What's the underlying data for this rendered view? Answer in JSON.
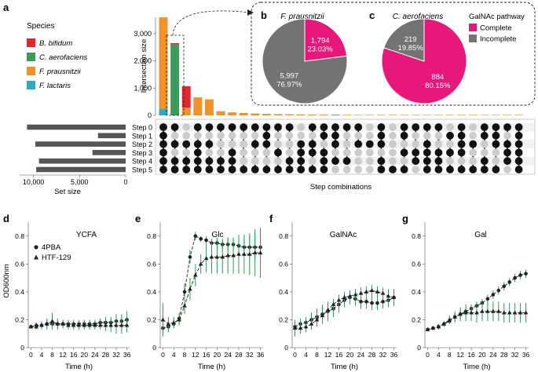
{
  "panel_labels": {
    "a": "a",
    "b": "b",
    "c": "c",
    "d": "d",
    "e": "e",
    "f": "f",
    "g": "g"
  },
  "legend_species": {
    "title": "Species",
    "items": [
      {
        "label": "B. bifidum",
        "color": "#e0262f"
      },
      {
        "label": "C. aerofaciens",
        "color": "#3c9a5a"
      },
      {
        "label": "F. prausnitzii",
        "color": "#f0922a"
      },
      {
        "label": "F. lactaris",
        "color": "#32a9c0"
      }
    ]
  },
  "legend_pathway": {
    "title": "GalNAc pathway",
    "items": [
      {
        "label": "Complete",
        "color": "#e8187a"
      },
      {
        "label": "Incomplete",
        "color": "#737373"
      }
    ]
  },
  "colors": {
    "dark_bar": "#555555",
    "dot_on": "#111111",
    "dot_off": "#cccccc",
    "error": "#2e9a5a"
  },
  "chart_data": [
    {
      "type": "bar",
      "name": "intersection-size",
      "ylabel": "Intersection size",
      "xlabel": "Step combinations",
      "ylim": [
        0,
        3600
      ],
      "yticks": [
        0,
        1000,
        2000,
        3000
      ],
      "ytick_labels": [
        "0",
        "1,000",
        "2,000",
        "3,000"
      ],
      "stacked": [
        {
          "F. lactaris": 250,
          "F. prausnitzii": 3350
        },
        {
          "C. aerofaciens": 2600,
          "B. bifidum": 50
        },
        {
          "B. bifidum": 790,
          "F. prausnitzii": 280
        },
        {
          "F. prausnitzii": 660
        },
        {
          "F. prausnitzii": 590
        },
        {
          "F. prausnitzii": 150
        },
        {
          "F. prausnitzii": 110
        },
        {
          "F. prausnitzii": 90
        },
        {
          "F. prausnitzii": 70
        },
        {
          "F. prausnitzii": 55
        },
        {
          "F. prausnitzii": 45
        },
        {
          "F. prausnitzii": 40
        },
        {
          "F. prausnitzii": 35
        },
        {
          "F. prausnitzii": 30
        },
        {
          "F. prausnitzii": 25
        },
        {
          "C. aerofaciens": 22
        },
        {
          "F. prausnitzii": 20
        },
        {
          "F. prausnitzii": 18
        },
        {
          "F. prausnitzii": 15
        },
        {
          "F. prausnitzii": 12
        },
        {
          "F. prausnitzii": 10
        },
        {
          "F. prausnitzii": 8
        },
        {
          "F. prausnitzii": 7
        },
        {
          "F. prausnitzii": 5
        },
        {
          "F. prausnitzii": 4
        },
        {
          "F. prausnitzii": 3
        },
        {
          "F. prausnitzii": 2
        },
        {
          "F. prausnitzii": 2
        },
        {
          "F. prausnitzii": 1
        },
        {
          "F. prausnitzii": 1
        },
        {
          "F. prausnitzii": 1
        },
        {
          "F. prausnitzii": 1
        }
      ]
    },
    {
      "type": "bar",
      "name": "set-size",
      "orientation": "horizontal",
      "xlabel": "Set size",
      "xlim": [
        0,
        11500
      ],
      "xticks": [
        0,
        5000,
        10000
      ],
      "xtick_labels": [
        "0",
        "5,000",
        "10,000"
      ],
      "sets": [
        "Step 0",
        "Step 1",
        "Step 2",
        "Step 3",
        "Step 4",
        "Step 5"
      ],
      "values": [
        10700,
        3000,
        9800,
        3600,
        9400,
        9700
      ]
    },
    {
      "type": "table",
      "name": "upset-matrix",
      "rows": [
        "Step 0",
        "Step 1",
        "Step 2",
        "Step 3",
        "Step 4",
        "Step 5"
      ],
      "combinations": [
        "111111",
        "101011",
        "001011",
        "101111",
        "101011",
        "100011",
        "100111",
        "100001",
        "101001",
        "111001",
        "100101",
        "100011",
        "001111",
        "101101",
        "110111",
        "111010",
        "100010",
        "101000",
        "001000",
        "111011",
        "000001",
        "110101",
        "100110",
        "101111",
        "100111",
        "010101",
        "111101",
        "001001",
        "110011",
        "111001",
        "101110",
        "111111"
      ]
    },
    {
      "type": "pie",
      "name": "f-prausnitzii-pie",
      "title": "F. prausnitzii",
      "slices": [
        {
          "label": "Complete",
          "value": 1794,
          "value_text": "1,794",
          "percent_text": "23.03%"
        },
        {
          "label": "Incomplete",
          "value": 5997,
          "value_text": "5,997",
          "percent_text": "76.97%"
        }
      ]
    },
    {
      "type": "pie",
      "name": "c-aerofaciens-pie",
      "title": "C. aerofaciens",
      "slices": [
        {
          "label": "Complete",
          "value": 884,
          "value_text": "884",
          "percent_text": "80.15%"
        },
        {
          "label": "Incomplete",
          "value": 219,
          "value_text": "219",
          "percent_text": "19.85%"
        }
      ]
    },
    {
      "type": "line",
      "name": "growth-ycfa",
      "title": "YCFA",
      "xlabel": "Time (h)",
      "ylabel": "OD600nm",
      "xlim": [
        -1,
        37
      ],
      "ylim": [
        0,
        0.9
      ],
      "xticks": [
        0,
        4,
        8,
        12,
        16,
        20,
        24,
        28,
        32,
        36
      ],
      "yticks": [
        0,
        0.2,
        0.4,
        0.6,
        0.8
      ],
      "ytick_labels": [
        "0",
        "0.2",
        "0.4",
        "0.6",
        "0.8"
      ],
      "legend": [
        "4PBA",
        "HTF-129"
      ],
      "series": [
        {
          "name": "4PBA",
          "marker": "circle",
          "x": [
            0,
            2,
            4,
            6,
            8,
            10,
            12,
            14,
            16,
            18,
            20,
            22,
            24,
            26,
            28,
            30,
            32,
            34,
            36
          ],
          "y": [
            0.15,
            0.16,
            0.16,
            0.17,
            0.17,
            0.17,
            0.17,
            0.17,
            0.17,
            0.17,
            0.17,
            0.17,
            0.17,
            0.18,
            0.18,
            0.18,
            0.19,
            0.19,
            0.2
          ],
          "err": [
            0.01,
            0.02,
            0.02,
            0.03,
            0.03,
            0.03,
            0.03,
            0.03,
            0.03,
            0.03,
            0.03,
            0.03,
            0.03,
            0.03,
            0.04,
            0.04,
            0.05,
            0.05,
            0.06
          ]
        },
        {
          "name": "HTF-129",
          "marker": "triangle",
          "x": [
            0,
            2,
            4,
            6,
            8,
            10,
            12,
            14,
            16,
            18,
            20,
            22,
            24,
            26,
            28,
            30,
            32,
            34,
            36
          ],
          "y": [
            0.15,
            0.15,
            0.16,
            0.17,
            0.19,
            0.17,
            0.17,
            0.16,
            0.16,
            0.16,
            0.16,
            0.16,
            0.16,
            0.16,
            0.16,
            0.16,
            0.16,
            0.16,
            0.16
          ],
          "err": [
            0.01,
            0.02,
            0.03,
            0.04,
            0.06,
            0.04,
            0.03,
            0.03,
            0.03,
            0.03,
            0.03,
            0.03,
            0.03,
            0.03,
            0.04,
            0.05,
            0.06,
            0.06,
            0.05
          ]
        }
      ]
    },
    {
      "type": "line",
      "name": "growth-glc",
      "title": "Glc",
      "xlabel": "Time (h)",
      "ylabel": "",
      "xlim": [
        -1,
        37
      ],
      "ylim": [
        0,
        0.9
      ],
      "xticks": [
        0,
        4,
        8,
        12,
        16,
        20,
        24,
        28,
        32,
        36
      ],
      "yticks": [
        0,
        0.2,
        0.4,
        0.6,
        0.8
      ],
      "ytick_labels": [
        "0",
        "0.2",
        "0.4",
        "0.6",
        "0.8"
      ],
      "series": [
        {
          "name": "4PBA",
          "marker": "circle",
          "x": [
            0,
            2,
            4,
            6,
            8,
            10,
            12,
            14,
            16,
            18,
            20,
            22,
            24,
            26,
            28,
            30,
            32,
            34,
            36
          ],
          "y": [
            0.14,
            0.15,
            0.17,
            0.21,
            0.4,
            0.65,
            0.8,
            0.78,
            0.77,
            0.75,
            0.75,
            0.74,
            0.74,
            0.74,
            0.73,
            0.72,
            0.72,
            0.72,
            0.72
          ],
          "err": [
            0.05,
            0.04,
            0.03,
            0.04,
            0.06,
            0.05,
            0.03,
            0.02,
            0.03,
            0.03,
            0.04,
            0.04,
            0.05,
            0.04,
            0.05,
            0.06,
            0.08,
            0.1,
            0.12
          ]
        },
        {
          "name": "HTF-129",
          "marker": "triangle",
          "x": [
            0,
            2,
            4,
            6,
            8,
            10,
            12,
            14,
            16,
            18,
            20,
            22,
            24,
            26,
            28,
            30,
            32,
            34,
            36
          ],
          "y": [
            0.2,
            0.17,
            0.18,
            0.2,
            0.3,
            0.42,
            0.52,
            0.6,
            0.64,
            0.65,
            0.65,
            0.65,
            0.66,
            0.66,
            0.67,
            0.67,
            0.67,
            0.68,
            0.68
          ],
          "err": [
            0.12,
            0.05,
            0.04,
            0.04,
            0.06,
            0.08,
            0.08,
            0.07,
            0.1,
            0.12,
            0.12,
            0.12,
            0.13,
            0.13,
            0.14,
            0.14,
            0.15,
            0.17,
            0.18
          ]
        }
      ]
    },
    {
      "type": "line",
      "name": "growth-galnac",
      "title": "GalNAc",
      "xlabel": "Time (h)",
      "ylabel": "",
      "xlim": [
        -1,
        37
      ],
      "ylim": [
        0,
        0.9
      ],
      "xticks": [
        0,
        4,
        8,
        12,
        16,
        20,
        24,
        28,
        32,
        36
      ],
      "yticks": [
        0,
        0.2,
        0.4,
        0.6,
        0.8
      ],
      "ytick_labels": [
        "0",
        "0.2",
        "0.4",
        "0.6",
        "0.8"
      ],
      "series": [
        {
          "name": "4PBA",
          "marker": "circle",
          "x": [
            0,
            2,
            4,
            6,
            8,
            10,
            12,
            14,
            16,
            18,
            20,
            22,
            24,
            26,
            28,
            30,
            32,
            34,
            36
          ],
          "y": [
            0.15,
            0.17,
            0.18,
            0.2,
            0.22,
            0.24,
            0.26,
            0.28,
            0.31,
            0.34,
            0.36,
            0.35,
            0.33,
            0.33,
            0.32,
            0.32,
            0.33,
            0.34,
            0.36
          ],
          "err": [
            0.03,
            0.04,
            0.04,
            0.05,
            0.06,
            0.07,
            0.07,
            0.06,
            0.06,
            0.05,
            0.05,
            0.05,
            0.05,
            0.05,
            0.05,
            0.05,
            0.05,
            0.05,
            0.06
          ]
        },
        {
          "name": "HTF-129",
          "marker": "triangle",
          "x": [
            0,
            2,
            4,
            6,
            8,
            10,
            12,
            14,
            16,
            18,
            20,
            22,
            24,
            26,
            28,
            30,
            32,
            34,
            36
          ],
          "y": [
            0.14,
            0.14,
            0.15,
            0.17,
            0.2,
            0.23,
            0.27,
            0.31,
            0.34,
            0.36,
            0.37,
            0.38,
            0.39,
            0.4,
            0.41,
            0.4,
            0.39,
            0.37,
            0.36
          ],
          "err": [
            0.06,
            0.04,
            0.04,
            0.04,
            0.05,
            0.05,
            0.05,
            0.04,
            0.04,
            0.04,
            0.04,
            0.04,
            0.04,
            0.04,
            0.04,
            0.04,
            0.04,
            0.05,
            0.05
          ]
        }
      ]
    },
    {
      "type": "line",
      "name": "growth-gal",
      "title": "Gal",
      "xlabel": "Time (h)",
      "ylabel": "",
      "xlim": [
        -1,
        37
      ],
      "ylim": [
        0,
        0.9
      ],
      "xticks": [
        0,
        4,
        8,
        12,
        16,
        20,
        24,
        28,
        32,
        36
      ],
      "yticks": [
        0,
        0.2,
        0.4,
        0.6,
        0.8
      ],
      "ytick_labels": [
        "0",
        "0.2",
        "0.4",
        "0.6",
        "0.8"
      ],
      "series": [
        {
          "name": "4PBA",
          "marker": "circle",
          "x": [
            0,
            2,
            4,
            6,
            8,
            10,
            12,
            14,
            16,
            18,
            20,
            22,
            24,
            26,
            28,
            30,
            32,
            34,
            36
          ],
          "y": [
            0.13,
            0.14,
            0.15,
            0.17,
            0.19,
            0.22,
            0.24,
            0.26,
            0.28,
            0.3,
            0.32,
            0.35,
            0.38,
            0.41,
            0.44,
            0.47,
            0.5,
            0.52,
            0.53
          ],
          "err": [
            0.01,
            0.01,
            0.02,
            0.02,
            0.02,
            0.03,
            0.03,
            0.03,
            0.03,
            0.03,
            0.03,
            0.03,
            0.03,
            0.03,
            0.03,
            0.03,
            0.03,
            0.03,
            0.03
          ]
        },
        {
          "name": "HTF-129",
          "marker": "triangle",
          "x": [
            0,
            2,
            4,
            6,
            8,
            10,
            12,
            14,
            16,
            18,
            20,
            22,
            24,
            26,
            28,
            30,
            32,
            34,
            36
          ],
          "y": [
            0.13,
            0.14,
            0.15,
            0.17,
            0.2,
            0.22,
            0.24,
            0.25,
            0.25,
            0.25,
            0.26,
            0.26,
            0.26,
            0.26,
            0.25,
            0.25,
            0.25,
            0.25,
            0.25
          ],
          "err": [
            0.01,
            0.01,
            0.02,
            0.02,
            0.03,
            0.04,
            0.05,
            0.06,
            0.06,
            0.07,
            0.07,
            0.07,
            0.07,
            0.07,
            0.07,
            0.07,
            0.07,
            0.07,
            0.07
          ]
        }
      ]
    }
  ]
}
